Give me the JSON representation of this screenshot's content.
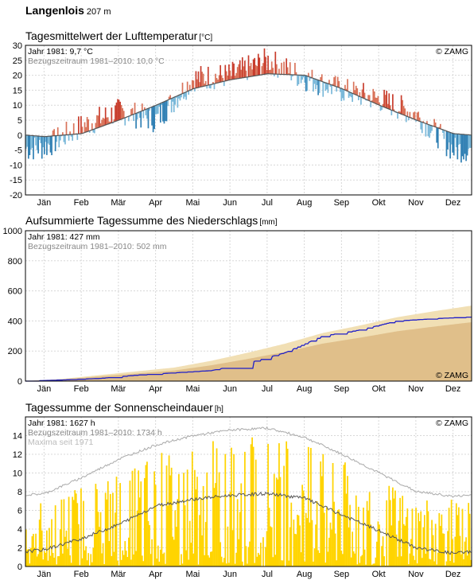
{
  "station": {
    "name": "Langenlois",
    "elevation": "207 m"
  },
  "copyright": "© ZAMG",
  "months": [
    "Jän",
    "Feb",
    "Mär",
    "Apr",
    "Mai",
    "Jun",
    "Jul",
    "Aug",
    "Sep",
    "Okt",
    "Nov",
    "Dez"
  ],
  "colors": {
    "warm": "#d9735a",
    "warm_strong": "#c83c2c",
    "cold": "#7ab8d9",
    "cold_strong": "#2f7fb3",
    "rain_ref": "#f1dfb4",
    "rain_ref_dark": "#d9b47c",
    "rain_year": "#1f1fc8",
    "sun": "#ffd400",
    "max_line": "#aaaaaa",
    "ref_line": "#555555"
  },
  "chart_data": [
    {
      "type": "bar",
      "title": "Tagesmittelwert der Lufttemperatur",
      "unit": "[°C]",
      "ylim": [
        -20,
        30
      ],
      "yticks": [
        -20,
        -15,
        -10,
        -5,
        0,
        5,
        10,
        15,
        20,
        25,
        30
      ],
      "annotation_year": "Jahr 1981: 9,7 °C",
      "annotation_ref": "Bezugszeitraum 1981–2010: 10,0 °C",
      "series": [
        {
          "name": "Jahr 1981",
          "values_monthly_anchor": [
            -4,
            3,
            8,
            5,
            19,
            20,
            25,
            19,
            15,
            12,
            7,
            -5
          ]
        },
        {
          "name": "Bezugszeitraum 1981–2010",
          "values_monthly_anchor": [
            -0.5,
            0.5,
            5,
            10,
            15.5,
            18.5,
            20.5,
            20,
            15.5,
            10,
            5,
            0.5
          ]
        }
      ]
    },
    {
      "type": "area",
      "title": "Aufsummierte Tagessumme des Niederschlags",
      "unit": "[mm]",
      "ylim": [
        0,
        1000
      ],
      "yticks": [
        0,
        200,
        400,
        600,
        800,
        1000
      ],
      "annotation_year": "Jahr 1981: 427 mm",
      "annotation_ref": "Bezugszeitraum 1981–2010: 502 mm",
      "series": [
        {
          "name": "Jahr 1981",
          "values_monthly_end": [
            8,
            18,
            40,
            55,
            70,
            120,
            190,
            300,
            340,
            400,
            415,
            427
          ]
        },
        {
          "name": "Bezugszeitraum 1981–2010",
          "values_monthly_end": [
            15,
            40,
            65,
            90,
            135,
            190,
            250,
            320,
            370,
            425,
            465,
            502
          ]
        }
      ]
    },
    {
      "type": "bar",
      "title": "Tagessumme der Sonnenscheindauer",
      "unit": "[h]",
      "ylim": [
        0,
        16
      ],
      "yticks": [
        0,
        2,
        4,
        6,
        8,
        10,
        12,
        14
      ],
      "annotation_year": "Jahr 1981: 1627 h",
      "annotation_ref": "Bezugszeitraum 1981–2010: 1734 h",
      "annotation_max": "Maxima seit 1971",
      "series": [
        {
          "name": "Maxima seit 1971",
          "values_monthly": [
            7.8,
            9.5,
            11.5,
            13,
            14,
            14.6,
            14.8,
            13.8,
            12,
            10,
            8,
            7.5
          ]
        },
        {
          "name": "Bezugszeitraum 1981–2010",
          "values_monthly": [
            1.8,
            3,
            4.5,
            6.5,
            7.2,
            7.6,
            7.8,
            7.3,
            5.5,
            3.8,
            2,
            1.4
          ]
        }
      ]
    }
  ]
}
